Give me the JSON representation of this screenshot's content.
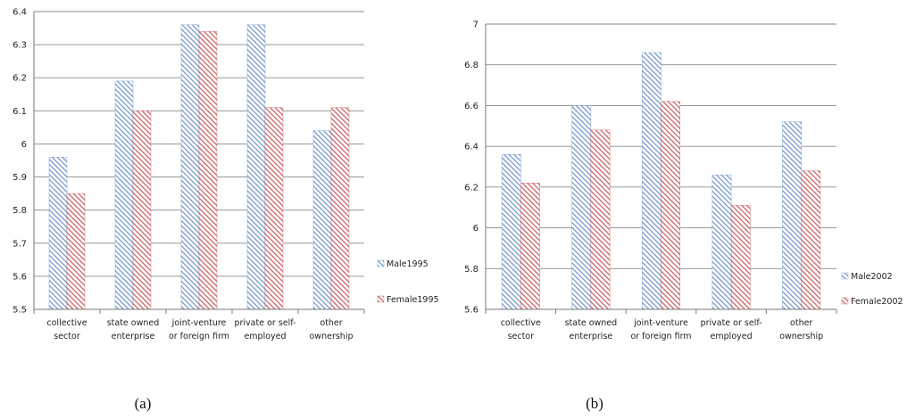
{
  "chart_data": [
    {
      "type": "bar",
      "caption": "(a)",
      "categories": [
        [
          "collective",
          "sector"
        ],
        [
          "state owned",
          "enterprise"
        ],
        [
          "joint-venture",
          "or foreign firm"
        ],
        [
          "private or self-",
          "employed"
        ],
        [
          "other",
          "ownership"
        ]
      ],
      "series": [
        {
          "name": "Male1995",
          "values": [
            5.96,
            6.19,
            6.36,
            6.36,
            6.04
          ]
        },
        {
          "name": "Female1995",
          "values": [
            5.85,
            6.1,
            6.34,
            6.11,
            6.11
          ]
        }
      ],
      "ylim": [
        5.5,
        6.4
      ],
      "yticks": [
        "5.5",
        "5.6",
        "5.7",
        "5.8",
        "5.9",
        "6",
        "6.1",
        "6.2",
        "6.3",
        "6.4"
      ],
      "grid": true,
      "legend": "right"
    },
    {
      "type": "bar",
      "caption": "(b)",
      "categories": [
        [
          "collective",
          "sector"
        ],
        [
          "state owned",
          "enterprise"
        ],
        [
          "joint-venture",
          "or foreign firm"
        ],
        [
          "private or self-",
          "employed"
        ],
        [
          "other",
          "ownership"
        ]
      ],
      "series": [
        {
          "name": "Male2002",
          "values": [
            6.36,
            6.6,
            6.86,
            6.26,
            6.52
          ]
        },
        {
          "name": "Female2002",
          "values": [
            6.22,
            6.48,
            6.62,
            6.11,
            6.28
          ]
        }
      ],
      "ylim": [
        5.6,
        7.0
      ],
      "yticks": [
        "5.6",
        "5.8",
        "6",
        "6.2",
        "6.4",
        "6.6",
        "6.8",
        "7"
      ],
      "grid": true,
      "legend": "right"
    }
  ],
  "colors": {
    "male": "#6e93c8",
    "female": "#c8585c",
    "grid": "#8a8a8a",
    "axis": "#777777"
  }
}
